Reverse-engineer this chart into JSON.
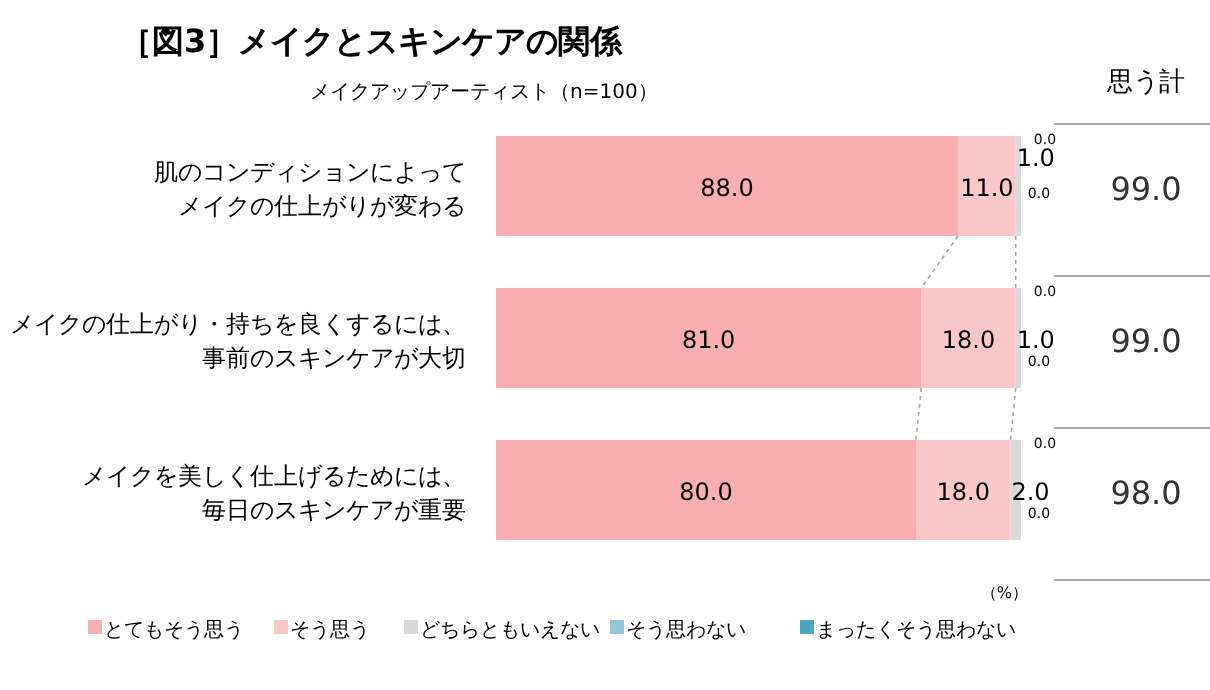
{
  "chart_data": {
    "type": "bar",
    "orientation": "horizontal",
    "stacked": true,
    "title": "［図3］メイクとスキンケアの関係",
    "subtitle": "メイクアップアーティスト（n=100）",
    "categories": [
      "肌のコンディションによってメイクの仕上がりが変わる",
      "メイクの仕上がり・持ちを良くするには、事前のスキンケアが大切",
      "メイクを美しく仕上げるためには、毎日のスキンケアが重要"
    ],
    "series": [
      {
        "name": "とてもそう思う",
        "color": "#f9aeb1",
        "values": [
          88.0,
          81.0,
          80.0
        ],
        "value_labels": [
          "88.0",
          "81.0",
          "80.0"
        ]
      },
      {
        "name": "そう思う",
        "color": "#fbc8ca",
        "values": [
          11.0,
          18.0,
          18.0
        ],
        "value_labels": [
          "11.0",
          "18.0",
          "18.0"
        ]
      },
      {
        "name": "どちらともいえない",
        "color": "#d9d9d9",
        "values": [
          1.0,
          1.0,
          2.0
        ],
        "value_labels": [
          "1.0",
          "1.0",
          "2.0"
        ]
      },
      {
        "name": "そう思わない",
        "color": "#92c6d8",
        "values": [
          0.0,
          0.0,
          0.0
        ],
        "value_labels": [
          "0.0",
          "0.0",
          "0.0"
        ]
      },
      {
        "name": "まったくそう思わない",
        "color": "#4ba5bf",
        "values": [
          0.0,
          0.0,
          0.0
        ],
        "value_labels": [
          "0.0",
          "0.0",
          "0.0"
        ]
      }
    ],
    "tick_labels": "y",
    "legend": "bottom",
    "annotations": [
      "思う計",
      "99.0",
      "99.0",
      "98.0",
      "（%）"
    ]
  }
}
